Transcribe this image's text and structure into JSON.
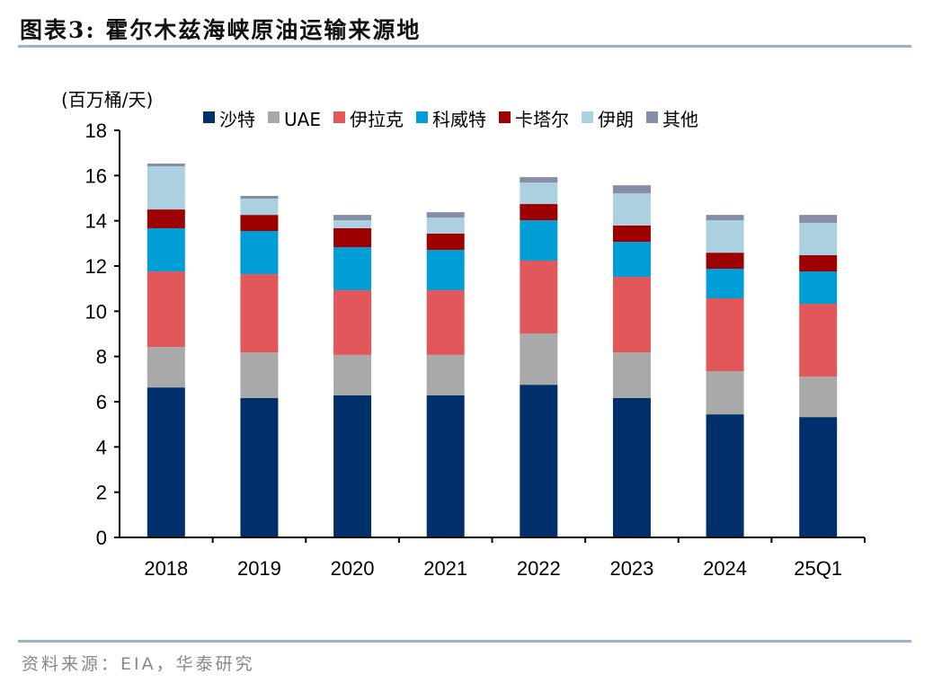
{
  "header": {
    "title": "图表3:  霍尔木兹海峡原油运输来源地"
  },
  "footer": {
    "source": "资料来源：EIA，华泰研究"
  },
  "chart_data": {
    "type": "bar",
    "stacked": true,
    "unit_label": "(百万桶/天)",
    "categories": [
      "2018",
      "2019",
      "2020",
      "2021",
      "2022",
      "2023",
      "2024",
      "25Q1"
    ],
    "ylim": [
      0,
      18
    ],
    "yticks": [
      0,
      2,
      4,
      6,
      8,
      10,
      12,
      14,
      16,
      18
    ],
    "grid": false,
    "legend_position": "top",
    "series": [
      {
        "name": "沙特",
        "color": "#00306b",
        "values": [
          6.63,
          6.16,
          6.28,
          6.28,
          6.75,
          6.16,
          5.44,
          5.32
        ]
      },
      {
        "name": "UAE",
        "color": "#a9a9a9",
        "values": [
          1.79,
          2.02,
          1.79,
          1.79,
          2.27,
          2.02,
          1.91,
          1.79
        ]
      },
      {
        "name": "伊拉克",
        "color": "#e2585a",
        "values": [
          3.34,
          3.46,
          2.86,
          2.86,
          3.22,
          3.34,
          3.22,
          3.22
        ]
      },
      {
        "name": "科威特",
        "color": "#009dd6",
        "values": [
          1.91,
          1.91,
          1.9,
          1.78,
          1.78,
          1.55,
          1.31,
          1.43
        ]
      },
      {
        "name": "卡塔尔",
        "color": "#9e0000",
        "values": [
          0.83,
          0.71,
          0.84,
          0.72,
          0.72,
          0.72,
          0.71,
          0.72
        ]
      },
      {
        "name": "伊朗",
        "color": "#abd0df",
        "values": [
          1.91,
          0.72,
          0.35,
          0.71,
          0.95,
          1.42,
          1.43,
          1.43
        ]
      },
      {
        "name": "其他",
        "color": "#858da8",
        "values": [
          0.12,
          0.12,
          0.24,
          0.24,
          0.24,
          0.36,
          0.24,
          0.35
        ]
      }
    ]
  }
}
